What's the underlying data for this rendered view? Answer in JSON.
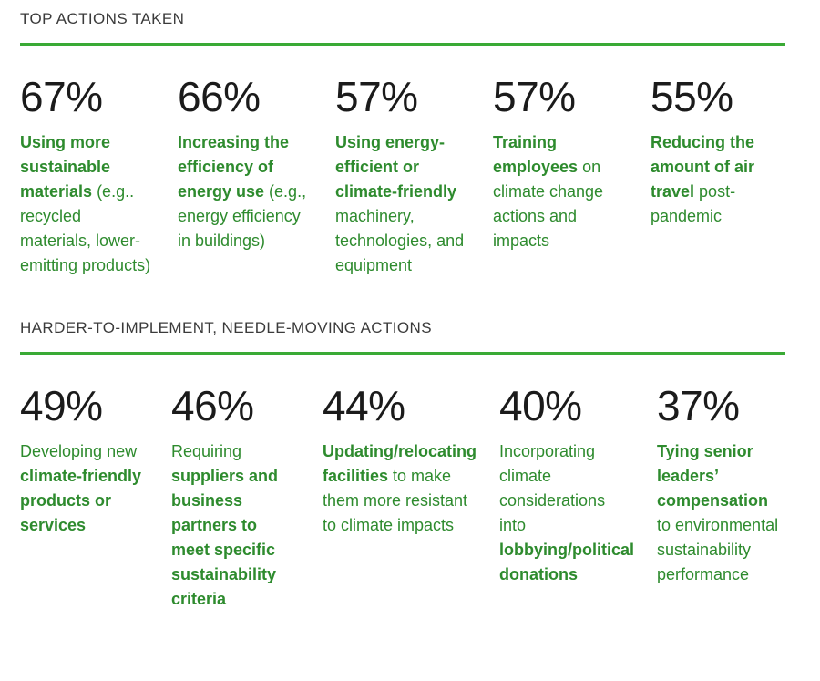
{
  "colors": {
    "accent_green": "#3aaa35",
    "text_green": "#2e8b2e",
    "heading_gray": "#3b3b3b",
    "percentage_black": "#1b1b1b",
    "background": "#ffffff"
  },
  "sections": [
    {
      "title": "TOP ACTIONS TAKEN",
      "cards": [
        {
          "pct": "67%",
          "segments": [
            {
              "t": "Using more sustainable materials",
              "b": true
            },
            {
              "t": " (e.g.. recycled materials, lower-emitting products)",
              "b": false
            }
          ]
        },
        {
          "pct": "66%",
          "segments": [
            {
              "t": "Increasing the efficiency of energy use",
              "b": true
            },
            {
              "t": " (e.g., energy efficiency in buildings)",
              "b": false
            }
          ]
        },
        {
          "pct": "57%",
          "segments": [
            {
              "t": "Using energy-efficient or climate-friendly",
              "b": true
            },
            {
              "t": " machinery, technologies, and equipment",
              "b": false
            }
          ]
        },
        {
          "pct": "57%",
          "segments": [
            {
              "t": "Training employees",
              "b": true
            },
            {
              "t": " on climate change actions and impacts",
              "b": false
            }
          ]
        },
        {
          "pct": "55%",
          "segments": [
            {
              "t": "Reducing the amount of air travel",
              "b": true
            },
            {
              "t": " post-pandemic",
              "b": false
            }
          ]
        }
      ]
    },
    {
      "title": "HARDER-TO-IMPLEMENT, NEEDLE-MOVING ACTIONS",
      "cards": [
        {
          "pct": "49%",
          "segments": [
            {
              "t": "Developing new ",
              "b": false
            },
            {
              "t": "climate-friendly products or services",
              "b": true
            }
          ]
        },
        {
          "pct": "46%",
          "segments": [
            {
              "t": "Requiring ",
              "b": false
            },
            {
              "t": "suppliers and business partners to meet specific sustainability criteria",
              "b": true
            }
          ]
        },
        {
          "pct": "44%",
          "segments": [
            {
              "t": "Updating/relocating facilities",
              "b": true
            },
            {
              "t": " to make them more resistant to climate impacts",
              "b": false
            }
          ]
        },
        {
          "pct": "40%",
          "segments": [
            {
              "t": "Incorporating climate considerations into ",
              "b": false
            },
            {
              "t": "lobbying/political donations",
              "b": true
            }
          ]
        },
        {
          "pct": "37%",
          "segments": [
            {
              "t": "Tying senior leaders’ compensation",
              "b": true
            },
            {
              "t": " to environmental sustainability performance",
              "b": false
            }
          ]
        }
      ]
    }
  ],
  "chart_data": [
    {
      "type": "table",
      "title": "TOP ACTIONS TAKEN",
      "categories": [
        "Using more sustainable materials (e.g.. recycled materials, lower-emitting products)",
        "Increasing the efficiency of energy use (e.g., energy efficiency in buildings)",
        "Using energy-efficient or climate-friendly machinery, technologies, and equipment",
        "Training employees on climate change actions and impacts",
        "Reducing the amount of air travel post-pandemic"
      ],
      "values": [
        67,
        66,
        57,
        57,
        55
      ],
      "unit": "%"
    },
    {
      "type": "table",
      "title": "HARDER-TO-IMPLEMENT, NEEDLE-MOVING ACTIONS",
      "categories": [
        "Developing new climate-friendly products or services",
        "Requiring suppliers and business partners to meet specific sustainability criteria",
        "Updating/relocating facilities to make them more resistant to climate impacts",
        "Incorporating climate considerations into lobbying/political donations",
        "Tying senior leaders’ compensation to environmental sustainability performance"
      ],
      "values": [
        49,
        46,
        44,
        40,
        37
      ],
      "unit": "%"
    }
  ]
}
